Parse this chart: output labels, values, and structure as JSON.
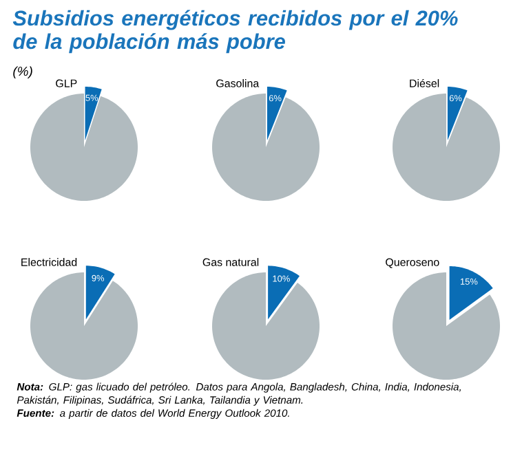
{
  "chart_data": [
    {
      "type": "other",
      "title": "Subsidios energéticos recibidos por el 20% de la población más pobre",
      "subtitle": "(%)",
      "annotations": [
        "**Nota:** GLP: gas licuado del petróleo. Datos para Angola, Bangladesh, China, India, Indonesia, Pakistán, Filipinas, Sudáfrica, Sri Lanka, Tailandia y Vietnam.",
        "**Fuente:** a partir de datos del World Energy Outlook 2010."
      ]
    },
    {
      "type": "pie",
      "title": "GLP",
      "categories": [
        null,
        null
      ],
      "values": [
        5,
        95
      ],
      "colors": [
        "#0a6db5",
        "#b1bbbf"
      ],
      "value_labels": [
        "5%",
        null
      ]
    },
    {
      "type": "pie",
      "title": "Gasolina",
      "categories": [
        null,
        null
      ],
      "values": [
        6,
        94
      ],
      "colors": [
        "#0a6db5",
        "#b1bbbf"
      ],
      "value_labels": [
        "6%",
        null
      ]
    },
    {
      "type": "pie",
      "title": "Diésel",
      "categories": [
        null,
        null
      ],
      "values": [
        6,
        94
      ],
      "colors": [
        "#0a6db5",
        "#b1bbbf"
      ],
      "value_labels": [
        "6%",
        null
      ]
    },
    {
      "type": "pie",
      "title": "Electricidad",
      "categories": [
        null,
        null
      ],
      "values": [
        9,
        91
      ],
      "colors": [
        "#0a6db5",
        "#b1bbbf"
      ],
      "value_labels": [
        "9%",
        null
      ]
    },
    {
      "type": "pie",
      "title": "Gas natural",
      "categories": [
        null,
        null
      ],
      "values": [
        10,
        90
      ],
      "colors": [
        "#0a6db5",
        "#b1bbbf"
      ],
      "value_labels": [
        "10%",
        null
      ]
    },
    {
      "type": "pie",
      "title": "Queroseno",
      "categories": [
        null,
        null
      ],
      "values": [
        15,
        85
      ],
      "colors": [
        "#0a6db5",
        "#b1bbbf"
      ],
      "value_labels": [
        "15%",
        null
      ]
    }
  ]
}
